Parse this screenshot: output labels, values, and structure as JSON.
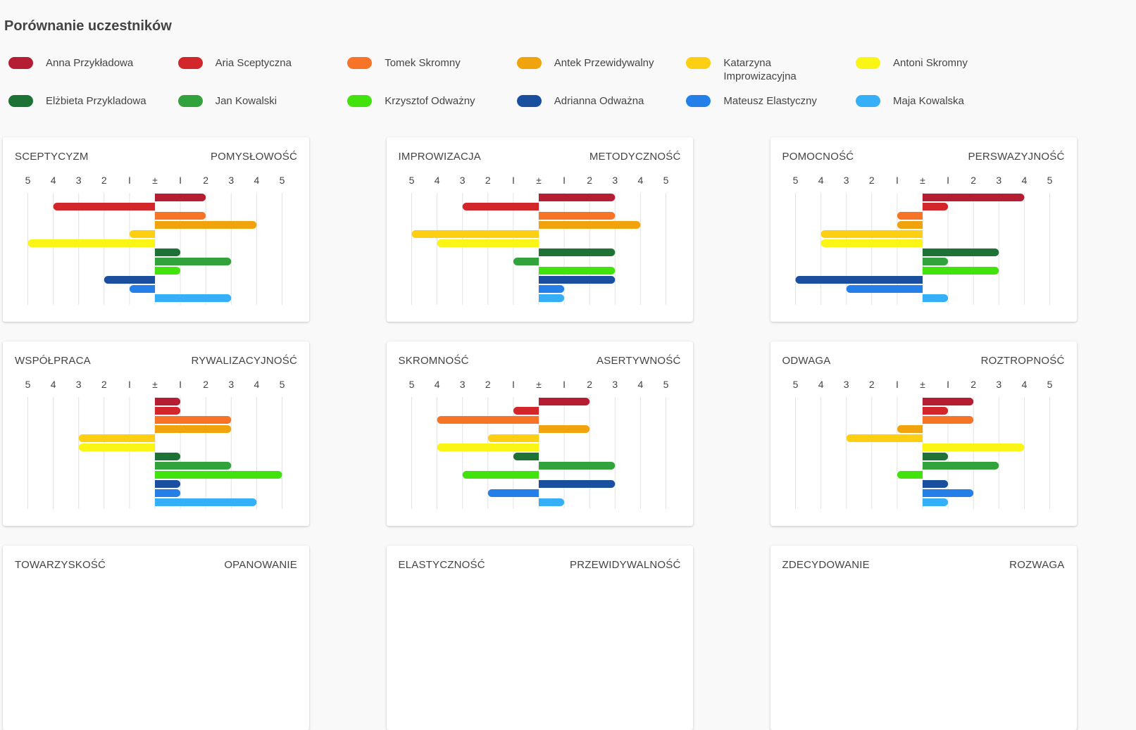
{
  "page_title": "Porównanie uczestników",
  "legend": [
    {
      "name": "Anna Przykładowa",
      "color": "#b51d33"
    },
    {
      "name": "Aria Sceptyczna",
      "color": "#d3262b"
    },
    {
      "name": "Tomek Skromny",
      "color": "#f77427"
    },
    {
      "name": "Antek Przewidywalny",
      "color": "#f0a30c"
    },
    {
      "name": "Katarzyna Improwizacyjna",
      "color": "#fccf12"
    },
    {
      "name": "Antoni Skromny",
      "color": "#fbf516"
    },
    {
      "name": "Elżbieta Przykladowa",
      "color": "#1e7235"
    },
    {
      "name": "Jan Kowalski",
      "color": "#32a33c"
    },
    {
      "name": "Krzysztof Odważny",
      "color": "#42e30c"
    },
    {
      "name": "Adrianna Odważna",
      "color": "#1a4fa0"
    },
    {
      "name": "Mateusz Elastyczny",
      "color": "#2480e8"
    },
    {
      "name": "Maja Kowalska",
      "color": "#35b0f8"
    }
  ],
  "chart_data": [
    {
      "type": "bar",
      "title_left": "SCEPTYCYZM",
      "title_right": "POMYSŁOWOŚĆ",
      "ticks": [
        "5",
        "4",
        "3",
        "2",
        "I",
        "±",
        "I",
        "2",
        "3",
        "4",
        "5"
      ],
      "xlim": [
        -5,
        5
      ],
      "series": [
        "Anna Przykładowa",
        "Aria Sceptyczna",
        "Tomek Skromny",
        "Antek Przewidywalny",
        "Katarzyna Improwizacyjna",
        "Antoni Skromny",
        "Elżbieta Przykladowa",
        "Jan Kowalski",
        "Krzysztof Odważny",
        "Adrianna Odważna",
        "Mateusz Elastyczny",
        "Maja Kowalska"
      ],
      "values": [
        2,
        -4,
        2,
        4,
        -1,
        -5,
        1,
        3,
        1,
        -2,
        -1,
        3
      ]
    },
    {
      "type": "bar",
      "title_left": "IMPROWIZACJA",
      "title_right": "METODYCZNOŚĆ",
      "ticks": [
        "5",
        "4",
        "3",
        "2",
        "I",
        "±",
        "I",
        "2",
        "3",
        "4",
        "5"
      ],
      "xlim": [
        -5,
        5
      ],
      "series": [
        "Anna Przykładowa",
        "Aria Sceptyczna",
        "Tomek Skromny",
        "Antek Przewidywalny",
        "Katarzyna Improwizacyjna",
        "Antoni Skromny",
        "Elżbieta Przykladowa",
        "Jan Kowalski",
        "Krzysztof Odważny",
        "Adrianna Odważna",
        "Mateusz Elastyczny",
        "Maja Kowalska"
      ],
      "values": [
        3,
        -3,
        3,
        4,
        -5,
        -4,
        3,
        -1,
        3,
        3,
        1,
        1
      ]
    },
    {
      "type": "bar",
      "title_left": "POMOCNOŚĆ",
      "title_right": "PERSWAZYJNOŚĆ",
      "ticks": [
        "5",
        "4",
        "3",
        "2",
        "I",
        "±",
        "I",
        "2",
        "3",
        "4",
        "5"
      ],
      "xlim": [
        -5,
        5
      ],
      "series": [
        "Anna Przykładowa",
        "Aria Sceptyczna",
        "Tomek Skromny",
        "Antek Przewidywalny",
        "Katarzyna Improwizacyjna",
        "Antoni Skromny",
        "Elżbieta Przykladowa",
        "Jan Kowalski",
        "Krzysztof Odważny",
        "Adrianna Odważna",
        "Mateusz Elastyczny",
        "Maja Kowalska"
      ],
      "values": [
        4,
        1,
        -1,
        -1,
        -4,
        -4,
        3,
        1,
        3,
        -5,
        -3,
        1
      ]
    },
    {
      "type": "bar",
      "title_left": "WSPÓŁPRACA",
      "title_right": "RYWALIZACYJNOŚĆ",
      "ticks": [
        "5",
        "4",
        "3",
        "2",
        "I",
        "±",
        "I",
        "2",
        "3",
        "4",
        "5"
      ],
      "xlim": [
        -5,
        5
      ],
      "series": [
        "Anna Przykładowa",
        "Aria Sceptyczna",
        "Tomek Skromny",
        "Antek Przewidywalny",
        "Katarzyna Improwizacyjna",
        "Antoni Skromny",
        "Elżbieta Przykladowa",
        "Jan Kowalski",
        "Krzysztof Odważny",
        "Adrianna Odważna",
        "Mateusz Elastyczny",
        "Maja Kowalska"
      ],
      "values": [
        1,
        1,
        3,
        3,
        -3,
        -3,
        1,
        3,
        5,
        1,
        1,
        4
      ]
    },
    {
      "type": "bar",
      "title_left": "SKROMNOŚĆ",
      "title_right": "ASERTYWNOŚĆ",
      "ticks": [
        "5",
        "4",
        "3",
        "2",
        "I",
        "±",
        "I",
        "2",
        "3",
        "4",
        "5"
      ],
      "xlim": [
        -5,
        5
      ],
      "series": [
        "Anna Przykładowa",
        "Aria Sceptyczna",
        "Tomek Skromny",
        "Antek Przewidywalny",
        "Katarzyna Improwizacyjna",
        "Antoni Skromny",
        "Elżbieta Przykladowa",
        "Jan Kowalski",
        "Krzysztof Odważny",
        "Adrianna Odważna",
        "Mateusz Elastyczny",
        "Maja Kowalska"
      ],
      "values": [
        2,
        -1,
        -4,
        2,
        -2,
        -4,
        -1,
        3,
        -3,
        3,
        -2,
        1
      ]
    },
    {
      "type": "bar",
      "title_left": "ODWAGA",
      "title_right": "ROZTROPNOŚĆ",
      "ticks": [
        "5",
        "4",
        "3",
        "2",
        "I",
        "±",
        "I",
        "2",
        "3",
        "4",
        "5"
      ],
      "xlim": [
        -5,
        5
      ],
      "series": [
        "Anna Przykładowa",
        "Aria Sceptyczna",
        "Tomek Skromny",
        "Antek Przewidywalny",
        "Katarzyna Improwizacyjna",
        "Antoni Skromny",
        "Elżbieta Przykladowa",
        "Jan Kowalski",
        "Krzysztof Odważny",
        "Adrianna Odważna",
        "Mateusz Elastyczny",
        "Maja Kowalska"
      ],
      "values": [
        2,
        1,
        2,
        -1,
        -3,
        4,
        1,
        3,
        -1,
        1,
        2,
        1
      ]
    },
    {
      "type": "bar",
      "title_left": "TOWARZYSKOŚĆ",
      "title_right": "OPANOWANIE",
      "ticks": [],
      "values": []
    },
    {
      "type": "bar",
      "title_left": "ELASTYCZNOŚĆ",
      "title_right": "PRZEWIDYWALNOŚĆ",
      "ticks": [],
      "values": []
    },
    {
      "type": "bar",
      "title_left": "ZDECYDOWANIE",
      "title_right": "ROZWAGA",
      "ticks": [],
      "values": []
    }
  ]
}
